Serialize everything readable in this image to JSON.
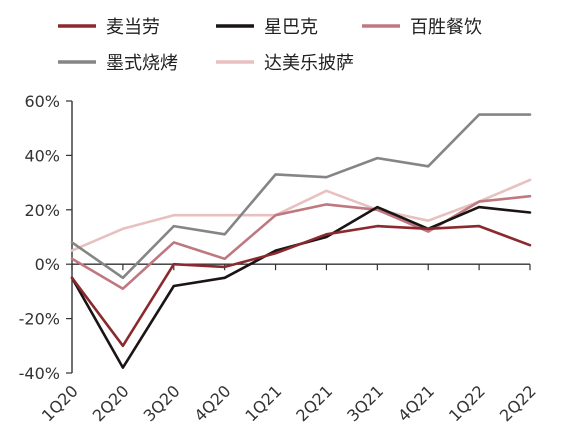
{
  "chart_data": {
    "type": "line",
    "title": "",
    "xlabel": "",
    "ylabel": "",
    "categories": [
      "1Q20",
      "2Q20",
      "3Q20",
      "4Q20",
      "1Q21",
      "2Q21",
      "3Q21",
      "4Q21",
      "1Q22",
      "2Q22"
    ],
    "ylim": [
      -40,
      60
    ],
    "y_ticks": [
      "-40%",
      "-20%",
      "0%",
      "20%",
      "40%",
      "60%"
    ],
    "grid": false,
    "legend_position": "top",
    "series": [
      {
        "name": "麦当劳",
        "color": "#8B2A2E",
        "values": [
          -5,
          -30,
          0,
          -1,
          4,
          11,
          14,
          13,
          14,
          7
        ]
      },
      {
        "name": "星巴克",
        "color": "#1A1414",
        "values": [
          -5,
          -38,
          -8,
          -5,
          5,
          10,
          21,
          13,
          21,
          19
        ]
      },
      {
        "name": "百胜餐饮",
        "color": "#C07880",
        "values": [
          2,
          -9,
          8,
          2,
          18,
          22,
          20,
          12,
          23,
          25
        ]
      },
      {
        "name": "墨式烧烤",
        "color": "#858585",
        "values": [
          8,
          -5,
          14,
          11,
          33,
          32,
          39,
          36,
          55,
          55
        ]
      },
      {
        "name": "达美乐披萨",
        "color": "#E8C0BF",
        "values": [
          5,
          13,
          18,
          18,
          18,
          27,
          20,
          16,
          23,
          31
        ]
      }
    ]
  }
}
